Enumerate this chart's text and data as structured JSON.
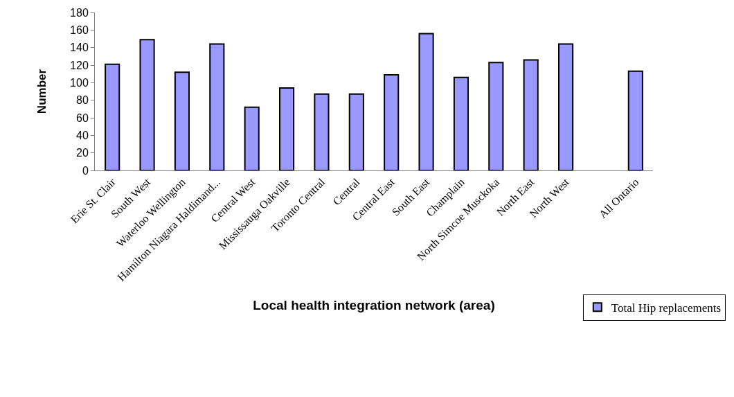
{
  "chart_data": {
    "type": "bar",
    "xlabel": "Local health integration network (area)",
    "ylabel": "Number",
    "categories": [
      "Erie St. Clair",
      "South West",
      "Waterloo Wellington",
      "Hamilton Niagara Haldimand...",
      "Central West",
      "Mississauga Oakville",
      "Toronto Central",
      "Central",
      "Central East",
      "South East",
      "Champlain",
      "North Simcoe Musckoka",
      "North East",
      "North West",
      null,
      "All Ontario"
    ],
    "series": [
      {
        "name": "Total Hip replacements",
        "color": "#9999ff",
        "values": [
          121,
          149,
          112,
          144,
          72,
          94,
          87,
          87,
          109,
          156,
          106,
          123,
          126,
          144,
          null,
          113
        ]
      }
    ],
    "ylim": [
      0,
      180
    ],
    "yticks": [
      0,
      20,
      40,
      60,
      80,
      100,
      120,
      140,
      160,
      180
    ],
    "grid": false,
    "legend": "bottom right"
  }
}
